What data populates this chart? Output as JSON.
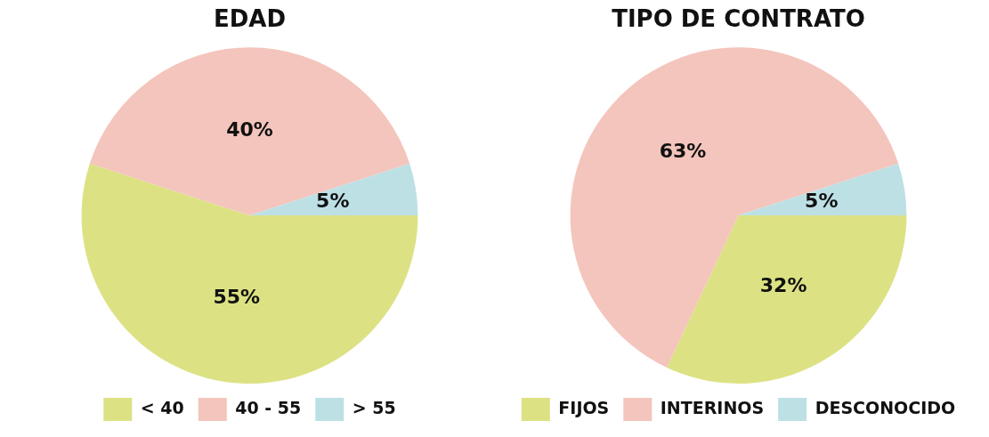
{
  "chart_data": [
    {
      "type": "pie",
      "title": "EDAD",
      "categories": [
        "< 40",
        "40 - 55",
        "> 55"
      ],
      "values": [
        55,
        40,
        5
      ],
      "colors": [
        "#dce283",
        "#f4c5bc",
        "#bde0e5"
      ],
      "value_labels": [
        "55%",
        "40%",
        "5%"
      ],
      "legend": "bottom"
    },
    {
      "type": "pie",
      "title": "TIPO DE CONTRATO",
      "categories": [
        "FIJOS",
        "INTERINOS",
        "DESCONOCIDO"
      ],
      "values": [
        32,
        63,
        5
      ],
      "colors": [
        "#dce283",
        "#f4c5bc",
        "#bde0e5"
      ],
      "value_labels": [
        "32%",
        "63%",
        "5%"
      ],
      "legend": "bottom"
    }
  ]
}
